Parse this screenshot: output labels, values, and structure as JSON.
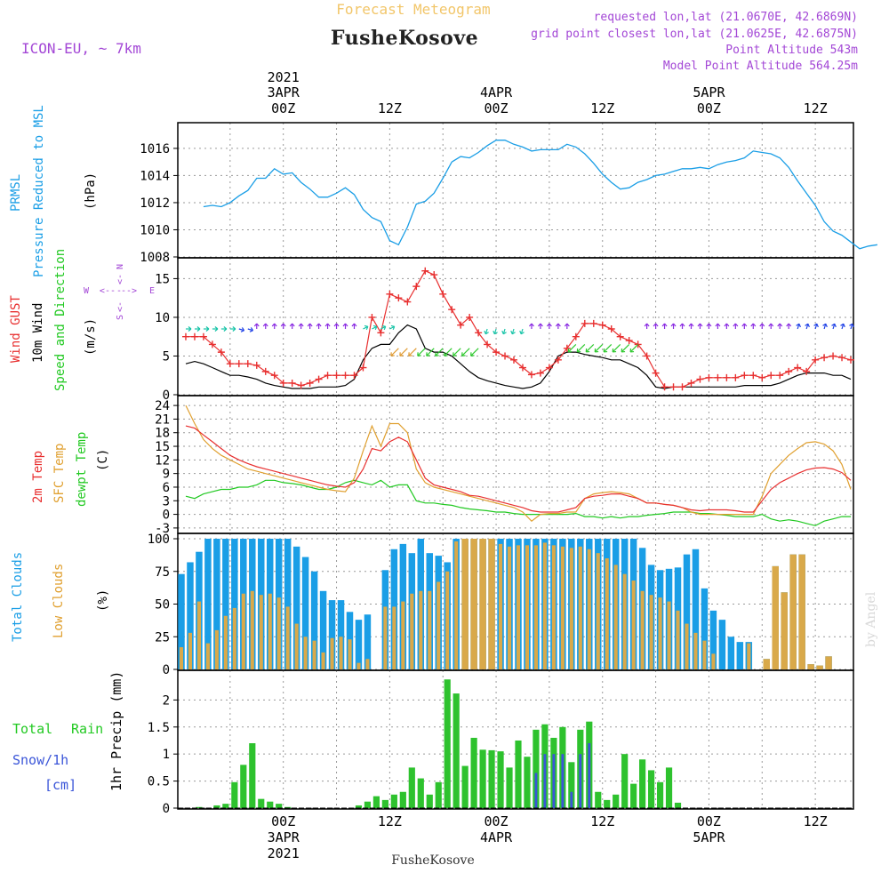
{
  "header": {
    "title": "Forecast Meteogram",
    "location": "FusheKosove",
    "model": "ICON-EU, ~ 7km",
    "requested": "requested lon,lat (21.0670E, 42.6869N)",
    "closest": "grid point closest lon,lat (21.0625E, 42.6875N)",
    "point_alt": "Point Altitude 543m",
    "model_alt": "Model Point Altitude 564.25m",
    "footer": "FusheKosove",
    "watermark": "by Angel"
  },
  "time_axis": {
    "top_labels": [
      {
        "day": "2021",
        "line2": "3APR",
        "line3": "00Z",
        "hour": 0
      },
      {
        "line3": "12Z",
        "hour": 12
      },
      {
        "line2": "4APR",
        "line3": "00Z",
        "hour": 24
      },
      {
        "line3": "12Z",
        "hour": 36
      },
      {
        "line2": "5APR",
        "line3": "00Z",
        "hour": 48
      },
      {
        "line3": "12Z",
        "hour": 60
      }
    ],
    "bottom_labels": [
      {
        "line1": "00Z",
        "line2": "3APR",
        "line3": "2021",
        "hour": 0
      },
      {
        "line1": "12Z",
        "hour": 12
      },
      {
        "line1": "00Z",
        "line2": "4APR",
        "hour": 24
      },
      {
        "line1": "12Z",
        "hour": 36
      },
      {
        "line1": "00Z",
        "line2": "5APR",
        "hour": 48
      },
      {
        "line1": "12Z",
        "hour": 60
      }
    ]
  },
  "panels": {
    "pressure": {
      "label1": "PRMSL",
      "label2": "Pressure Reduced to MSL",
      "unit": "(hPa)"
    },
    "wind": {
      "label_gust": "Wind GUST",
      "label_wind1": "10m Wind",
      "label_wind2": "Speed and Direction",
      "unit": "(m/s)",
      "compass_n": "N",
      "compass_s": "S",
      "compass_w": "W",
      "compass_e": "E"
    },
    "temp": {
      "label_2m": "2m Temp",
      "label_sfc": "SFC Temp",
      "label_dew": "dewpt Temp",
      "unit": "(C)"
    },
    "clouds": {
      "label_total": "Total Clouds",
      "label_low": "Low Clouds",
      "unit": "(%)"
    },
    "precip": {
      "label_total": "Total",
      "label_rain": "Rain",
      "label_snow": "Snow/1h",
      "label_cm": "[cm]",
      "unit": "1hr Precip (mm)"
    }
  },
  "colors": {
    "pressure": "#1a9ee6",
    "gust": "#e83030",
    "wind": "#000000",
    "arrow_purple": "#8a2be2",
    "arrow_blue": "#1e40e6",
    "arrow_green": "#2ec92e",
    "arrow_cyan": "#18c4a8",
    "arrow_orange": "#e09a30",
    "t2m": "#e83030",
    "sfc": "#e0a030",
    "dew": "#22c922",
    "total_clouds": "#1a9ee6",
    "low_clouds": "#d9a94a",
    "rain": "#2ec22e",
    "snow": "#3a55d8",
    "title": "#f2c66a",
    "magenta": "#a347d6"
  },
  "chart_data": [
    {
      "type": "line",
      "name": "pressure",
      "x_unit": "hours from 2021-04-03 00Z",
      "ylim": [
        1008,
        1017.5
      ],
      "yticks": [
        1008,
        1010,
        1012,
        1014,
        1016
      ],
      "x": [
        -9,
        -8,
        -7,
        -6,
        -5,
        -4,
        -3,
        -2,
        -1,
        0,
        1,
        2,
        3,
        4,
        5,
        6,
        7,
        8,
        9,
        10,
        11,
        12,
        13,
        14,
        15,
        16,
        17,
        18,
        19,
        20,
        21,
        22,
        23,
        24,
        25,
        26,
        27,
        28,
        29,
        30,
        31,
        32,
        33,
        34,
        35,
        36,
        37,
        38,
        39,
        40,
        41,
        42,
        43,
        44,
        45,
        46,
        47,
        48,
        49,
        50,
        51,
        52,
        53,
        54,
        55,
        56,
        57,
        58,
        59,
        60,
        61,
        62,
        63,
        64,
        65,
        66,
        67
      ],
      "values": [
        1011.7,
        1011.8,
        1011.7,
        1012.0,
        1012.5,
        1012.9,
        1013.8,
        1013.8,
        1014.5,
        1014.1,
        1014.2,
        1013.5,
        1013.0,
        1012.4,
        1012.4,
        1012.7,
        1013.1,
        1012.6,
        1011.5,
        1010.9,
        1010.6,
        1009.2,
        1008.9,
        1010.2,
        1011.9,
        1012.1,
        1012.7,
        1013.8,
        1015.0,
        1015.4,
        1015.3,
        1015.7,
        1016.2,
        1016.6,
        1016.6,
        1016.3,
        1016.1,
        1015.8,
        1015.9,
        1015.9,
        1015.9,
        1016.3,
        1016.1,
        1015.6,
        1014.9,
        1014.1,
        1013.5,
        1013.0,
        1013.1,
        1013.5,
        1013.7,
        1014.0,
        1014.1,
        1014.3,
        1014.5,
        1014.5,
        1014.6,
        1014.5,
        1014.8,
        1015.0,
        1015.1,
        1015.3,
        1015.8,
        1015.7,
        1015.6,
        1015.3,
        1014.6,
        1013.6,
        1012.7,
        1011.8,
        1010.6,
        1009.9,
        1009.6,
        1009.1,
        1008.6,
        1008.8,
        1008.9
      ]
    },
    {
      "type": "line",
      "name": "wind",
      "ylim": [
        0,
        17
      ],
      "yticks": [
        0,
        5,
        10,
        15
      ],
      "x": [
        -11,
        -10,
        -9,
        -8,
        -7,
        -6,
        -5,
        -4,
        -3,
        -2,
        -1,
        0,
        1,
        2,
        3,
        4,
        5,
        6,
        7,
        8,
        9,
        10,
        11,
        12,
        13,
        14,
        15,
        16,
        17,
        18,
        19,
        20,
        21,
        22,
        23,
        24,
        25,
        26,
        27,
        28,
        29,
        30,
        31,
        32,
        33,
        34,
        35,
        36,
        37,
        38,
        39,
        40,
        41,
        42,
        43,
        44,
        45,
        46,
        47,
        48,
        49,
        50,
        51,
        52,
        53,
        54,
        55,
        56,
        57,
        58,
        59,
        60,
        61,
        62,
        63,
        64
      ],
      "gust": [
        7.5,
        7.5,
        7.5,
        6.5,
        5.5,
        4,
        4,
        4,
        3.8,
        3,
        2.5,
        1.5,
        1.5,
        1.2,
        1.5,
        2,
        2.5,
        2.5,
        2.5,
        2.5,
        3.5,
        10,
        8,
        13,
        12.5,
        12,
        14,
        16,
        15.5,
        13,
        11,
        9,
        10,
        8,
        6.5,
        5.5,
        5,
        4.5,
        3.5,
        2.6,
        2.8,
        3.5,
        4.5,
        6,
        7.5,
        9.2,
        9.2,
        9,
        8.5,
        7.5,
        7,
        6.5,
        5,
        2.8,
        1,
        1,
        1,
        1.5,
        2,
        2.2,
        2.2,
        2.2,
        2.2,
        2.5,
        2.5,
        2.2,
        2.5,
        2.5,
        3,
        3.5,
        3,
        4.5,
        4.8,
        5,
        4.8,
        4.5
      ],
      "wind": [
        4,
        4.3,
        4,
        3.5,
        3,
        2.5,
        2.5,
        2.3,
        2,
        1.5,
        1.2,
        1,
        0.8,
        0.8,
        0.8,
        1,
        1,
        1,
        1.2,
        2,
        4.5,
        6,
        6.5,
        6.5,
        8,
        9,
        8.5,
        6,
        5.5,
        5.5,
        5,
        4,
        3,
        2.2,
        1.8,
        1.5,
        1.2,
        1,
        0.8,
        1,
        1.5,
        3,
        5,
        5.5,
        5.5,
        5.2,
        5,
        4.8,
        4.5,
        4.5,
        4,
        3.5,
        2.5,
        1,
        0.8,
        1,
        1,
        1,
        1,
        1,
        1,
        1,
        1,
        1.2,
        1.2,
        1.2,
        1.2,
        1.5,
        2,
        2.5,
        2.8,
        2.8,
        2.8,
        2.5,
        2.5,
        2
      ]
    },
    {
      "type": "line",
      "name": "temperature",
      "ylim": [
        -4,
        25
      ],
      "yticks": [
        -3,
        0,
        3,
        6,
        9,
        12,
        15,
        18,
        21,
        24
      ],
      "x": [
        -11,
        -10,
        -9,
        -8,
        -7,
        -6,
        -5,
        -4,
        -3,
        -2,
        -1,
        0,
        1,
        2,
        3,
        4,
        5,
        6,
        7,
        8,
        9,
        10,
        11,
        12,
        13,
        14,
        15,
        16,
        17,
        18,
        19,
        20,
        21,
        22,
        23,
        24,
        25,
        26,
        27,
        28,
        29,
        30,
        31,
        32,
        33,
        34,
        35,
        36,
        37,
        38,
        39,
        40,
        41,
        42,
        43,
        44,
        45,
        46,
        47,
        48,
        49,
        50,
        51,
        52,
        53,
        54,
        55,
        56,
        57,
        58,
        59,
        60,
        61,
        62,
        63,
        64
      ],
      "t2m": [
        19.5,
        19,
        17.5,
        16,
        14.5,
        13,
        12,
        11.2,
        10.5,
        10,
        9.5,
        9,
        8.5,
        8,
        7.5,
        7,
        6.5,
        6.2,
        6,
        7,
        10,
        14.5,
        14,
        16,
        17,
        16,
        12,
        8,
        6.5,
        6,
        5.5,
        5,
        4.2,
        4,
        3.5,
        3,
        2.5,
        2,
        1.5,
        0.8,
        0.5,
        0.5,
        0.5,
        1,
        1.5,
        3.5,
        4,
        4.2,
        4.5,
        4.5,
        4,
        3.5,
        2.5,
        2.5,
        2.2,
        2,
        1.5,
        1,
        0.8,
        1,
        1,
        1,
        0.8,
        0.5,
        0.5,
        3,
        5.5,
        7,
        8,
        9,
        9.8,
        10.2,
        10.3,
        10,
        9.2,
        7.5
      ],
      "sfc": [
        24,
        20,
        16.5,
        14.5,
        13,
        12,
        11,
        10,
        9.5,
        9,
        8.5,
        8,
        7.5,
        7,
        6.5,
        6,
        5.5,
        5.2,
        5,
        8,
        14,
        19.5,
        15,
        20,
        20,
        18,
        10,
        7,
        6,
        5.5,
        5,
        4.5,
        4,
        3.5,
        3,
        2.5,
        2,
        1.5,
        0.5,
        -1.5,
        0,
        0.2,
        0.2,
        0.5,
        0.5,
        3.5,
        4.5,
        4.8,
        5,
        4.8,
        4.5,
        3.5,
        2.5,
        2.5,
        2.2,
        2,
        1.5,
        0.5,
        0,
        0,
        0,
        0,
        0,
        0,
        0,
        4,
        9,
        11,
        13,
        14.5,
        15.8,
        16,
        15.5,
        14,
        11,
        5.5
      ],
      "dew": [
        4,
        3.5,
        4.5,
        5,
        5.5,
        5.5,
        6,
        6,
        6.5,
        7.5,
        7.5,
        7,
        6.8,
        6.5,
        6,
        5.5,
        5.5,
        6,
        7,
        7.5,
        7,
        6.5,
        7.5,
        6,
        6.5,
        6.5,
        3,
        2.5,
        2.5,
        2.2,
        2,
        1.5,
        1.2,
        1,
        0.8,
        0.5,
        0.5,
        0.2,
        0,
        0,
        0,
        0,
        0,
        0,
        0.2,
        -0.5,
        -0.5,
        -0.8,
        -0.5,
        -0.8,
        -0.5,
        -0.5,
        -0.2,
        0,
        0.2,
        0.5,
        0.5,
        0.5,
        0.2,
        0.2,
        0,
        -0.2,
        -0.5,
        -0.5,
        -0.5,
        0,
        -1,
        -1.5,
        -1.2,
        -1.5,
        -2,
        -2.5,
        -1.5,
        -1,
        -0.5,
        -0.5
      ]
    },
    {
      "type": "bar",
      "name": "clouds",
      "ylim": [
        0,
        100
      ],
      "yticks": [
        0,
        25,
        50,
        75,
        100
      ],
      "x": [
        -11.5,
        -10.5,
        -9.5,
        -8.5,
        -7.5,
        -6.5,
        -5.5,
        -4.5,
        -3.5,
        -2.5,
        -1.5,
        -0.5,
        0.5,
        1.5,
        2.5,
        3.5,
        4.5,
        5.5,
        6.5,
        7.5,
        8.5,
        9.5,
        10.5,
        11.5,
        12.5,
        13.5,
        14.5,
        15.5,
        16.5,
        17.5,
        18.5,
        19.5,
        20.5,
        21.5,
        22.5,
        23.5,
        24.5,
        25.5,
        26.5,
        27.5,
        28.5,
        29.5,
        30.5,
        31.5,
        32.5,
        33.5,
        34.5,
        35.5,
        36.5,
        37.5,
        38.5,
        39.5,
        40.5,
        41.5,
        42.5,
        43.5,
        44.5,
        45.5,
        46.5,
        47.5,
        48.5,
        49.5,
        50.5,
        51.5,
        52.5,
        53.5,
        54.5,
        55.5,
        56.5,
        57.5,
        58.5,
        59.5,
        60.5,
        61.5,
        62.5,
        63.5
      ],
      "total": [
        73,
        82,
        90,
        100,
        100,
        100,
        100,
        100,
        100,
        100,
        100,
        100,
        100,
        94,
        86,
        75,
        60,
        53,
        53,
        44,
        38,
        42,
        0,
        76,
        92,
        96,
        89,
        100,
        89,
        87,
        82,
        100,
        100,
        100,
        100,
        100,
        100,
        100,
        100,
        100,
        100,
        100,
        100,
        100,
        100,
        100,
        100,
        100,
        100,
        100,
        100,
        100,
        93,
        80,
        76,
        77,
        78,
        88,
        92,
        62,
        45,
        38,
        25,
        21,
        21,
        0,
        8,
        79,
        59,
        88,
        88,
        4,
        3,
        10,
        0,
        0
      ],
      "low": [
        17,
        28,
        52,
        20,
        30,
        41,
        47,
        58,
        60,
        57,
        58,
        55,
        48,
        35,
        25,
        22,
        13,
        24,
        25,
        23,
        5,
        8,
        0,
        48,
        48,
        52,
        58,
        60,
        60,
        67,
        75,
        98,
        100,
        100,
        100,
        100,
        96,
        94,
        95,
        95,
        95,
        97,
        95,
        94,
        93,
        94,
        92,
        89,
        85,
        80,
        73,
        68,
        60,
        57,
        55,
        52,
        45,
        35,
        28,
        22,
        12,
        0,
        0,
        0,
        20,
        0,
        8,
        79,
        59,
        88,
        88,
        4,
        3,
        10,
        0,
        0
      ]
    },
    {
      "type": "bar",
      "name": "precip",
      "ylim": [
        0,
        2.45
      ],
      "yticks": [
        0,
        0.5,
        1,
        1.5,
        2
      ],
      "x": [
        -11.5,
        -10.5,
        -9.5,
        -8.5,
        -7.5,
        -6.5,
        -5.5,
        -4.5,
        -3.5,
        -2.5,
        -1.5,
        -0.5,
        0.5,
        1.5,
        2.5,
        3.5,
        4.5,
        5.5,
        6.5,
        7.5,
        8.5,
        9.5,
        10.5,
        11.5,
        12.5,
        13.5,
        14.5,
        15.5,
        16.5,
        17.5,
        18.5,
        19.5,
        20.5,
        21.5,
        22.5,
        23.5,
        24.5,
        25.5,
        26.5,
        27.5,
        28.5,
        29.5,
        30.5,
        31.5,
        32.5,
        33.5,
        34.5,
        35.5,
        36.5,
        37.5,
        38.5,
        39.5,
        40.5,
        41.5,
        42.5,
        43.5,
        44.5,
        45.5,
        46.5,
        47.5,
        48.5,
        49.5,
        50.5,
        51.5,
        52.5,
        53.5,
        54.5,
        55.5,
        56.5,
        57.5,
        58.5,
        59.5,
        60.5,
        61.5,
        62.5,
        63.5
      ],
      "rain": [
        0,
        0,
        0.02,
        0,
        0.05,
        0.08,
        0.48,
        0.8,
        1.2,
        0.17,
        0.12,
        0.08,
        0.02,
        0,
        0,
        0,
        0,
        0,
        0,
        0,
        0.05,
        0.12,
        0.22,
        0.15,
        0.25,
        0.3,
        0.75,
        0.55,
        0.25,
        0.48,
        2.38,
        2.12,
        0.78,
        1.3,
        1.08,
        1.07,
        1.05,
        0.75,
        1.25,
        0.95,
        1.45,
        1.55,
        1.3,
        1.5,
        0.85,
        1.45,
        1.6,
        0.3,
        0.15,
        0.25,
        1,
        0.45,
        0.9,
        0.7,
        0.48,
        0.75,
        0.1,
        0,
        0,
        0,
        0,
        0,
        0,
        0,
        0,
        0,
        0,
        0,
        0,
        0,
        0,
        0,
        0,
        0,
        0,
        0
      ],
      "snow": [
        0,
        0,
        0,
        0,
        0,
        0,
        0,
        0,
        0,
        0,
        0,
        0,
        0,
        0,
        0,
        0,
        0,
        0,
        0,
        0,
        0,
        0,
        0,
        0,
        0,
        0,
        0,
        0,
        0,
        0,
        0,
        0,
        0,
        0,
        0,
        0,
        0,
        0,
        0,
        0,
        0.65,
        1,
        1,
        1,
        0.3,
        1,
        1.2,
        0,
        0,
        0,
        0,
        0,
        0,
        0,
        0,
        0,
        0,
        0,
        0,
        0,
        0,
        0,
        0,
        0,
        0,
        0,
        0,
        0,
        0,
        0,
        0,
        0,
        0,
        0,
        0,
        0
      ]
    }
  ]
}
